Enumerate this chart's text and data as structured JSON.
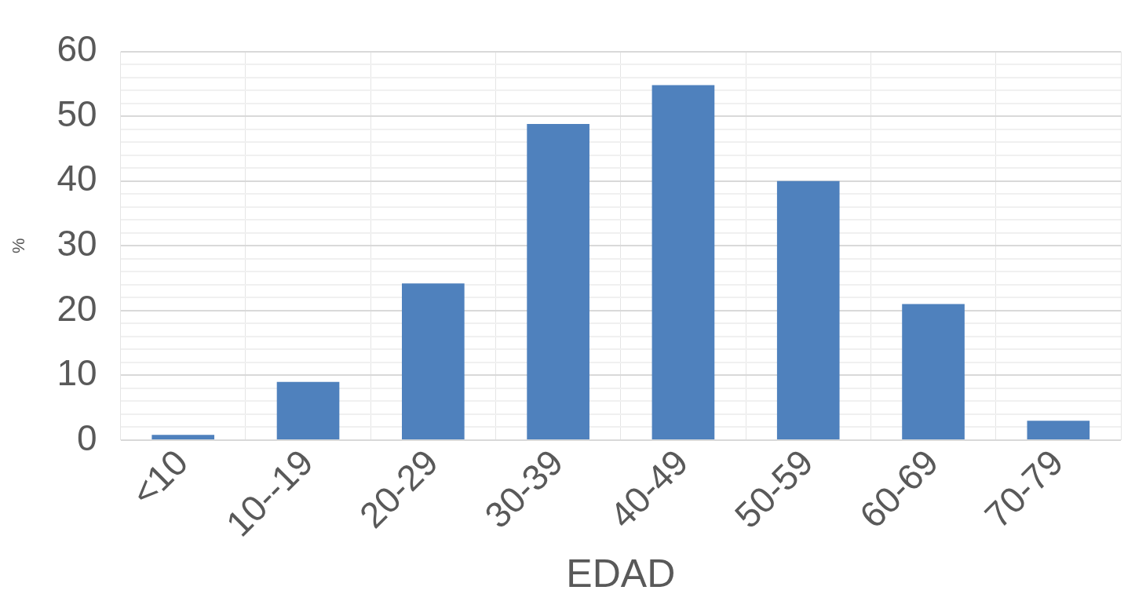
{
  "chart_data": {
    "type": "bar",
    "xlabel": "EDAD",
    "ylabel": "%",
    "categories": [
      "<10",
      "10--19",
      "20-29",
      "30-39",
      "40-49",
      "50-59",
      "60-69",
      "70-79"
    ],
    "values": [
      0.8,
      9,
      24.2,
      48.8,
      54.8,
      40,
      21,
      3
    ],
    "color": "#4f81bd",
    "ylim": [
      0,
      60
    ],
    "yticks": [
      0,
      {
        "value": 2,
        "label": null
      },
      {
        "value": 4,
        "label": null
      },
      {
        "value": 6,
        "label": null
      },
      {
        "value": 8,
        "label": null
      },
      10,
      {
        "value": 12,
        "label": null
      },
      {
        "value": 14,
        "label": null
      },
      {
        "value": 16,
        "label": null
      },
      {
        "value": 18,
        "label": null
      },
      20,
      {
        "value": 22,
        "label": null
      },
      {
        "value": 24,
        "label": null
      },
      {
        "value": 26,
        "label": null
      },
      {
        "value": 28,
        "label": null
      },
      30,
      {
        "value": 32,
        "label": null
      },
      {
        "value": 34,
        "label": null
      },
      {
        "value": 36,
        "label": null
      },
      {
        "value": 38,
        "label": null
      },
      40,
      {
        "value": 42,
        "label": null
      },
      {
        "value": 44,
        "label": null
      },
      {
        "value": 46,
        "label": null
      },
      {
        "value": 48,
        "label": null
      },
      50,
      {
        "value": 52,
        "label": null
      },
      {
        "value": 54,
        "label": null
      },
      {
        "value": 56,
        "label": null
      },
      {
        "value": 58,
        "label": null
      },
      60
    ],
    "grid": true
  }
}
